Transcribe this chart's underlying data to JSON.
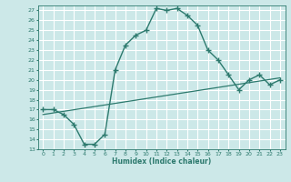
{
  "xlabel": "Humidex (Indice chaleur)",
  "bg_color": "#cce8e8",
  "line_color": "#2d7a6e",
  "grid_color": "#ffffff",
  "curve_x": [
    0,
    1,
    2,
    3,
    4,
    5,
    6,
    7,
    8,
    9,
    10,
    11,
    12,
    13,
    14,
    15,
    16,
    17,
    18,
    19,
    20,
    21,
    22,
    23
  ],
  "curve_y": [
    17.0,
    17.0,
    16.5,
    15.5,
    13.5,
    13.5,
    14.5,
    21.0,
    23.5,
    24.5,
    25.0,
    27.2,
    27.0,
    27.2,
    26.5,
    25.5,
    23.0,
    22.0,
    20.5,
    19.0,
    20.0,
    20.5,
    19.5,
    20.0
  ],
  "trend_x": [
    0,
    23
  ],
  "trend_y": [
    16.5,
    20.2
  ],
  "ylim": [
    13,
    27.5
  ],
  "xlim": [
    -0.5,
    23.5
  ],
  "yticks": [
    13,
    14,
    15,
    16,
    17,
    18,
    19,
    20,
    21,
    22,
    23,
    24,
    25,
    26,
    27
  ],
  "xticks": [
    0,
    1,
    2,
    3,
    4,
    5,
    6,
    7,
    8,
    9,
    10,
    11,
    12,
    13,
    14,
    15,
    16,
    17,
    18,
    19,
    20,
    21,
    22,
    23
  ],
  "xtick_labels": [
    "0",
    "1",
    "2",
    "3",
    "4",
    "5",
    "6",
    "7",
    "8",
    "9",
    "10",
    "11",
    "12",
    "13",
    "14",
    "15",
    "16",
    "17",
    "18",
    "19",
    "20",
    "21",
    "22",
    "23"
  ]
}
